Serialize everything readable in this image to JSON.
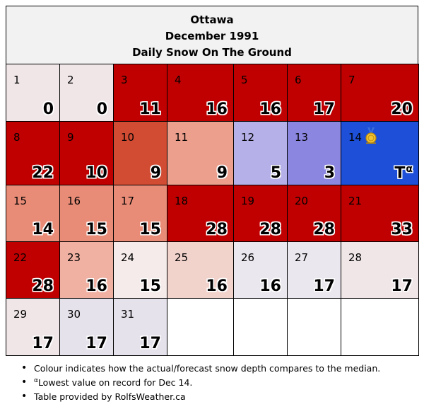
{
  "header": {
    "city": "Ottawa",
    "period": "December 1991",
    "subtitle": "Daily Snow On The Ground"
  },
  "colors": {
    "deep_red": "#c00000",
    "red_orange": "#d24b33",
    "salmon": "#ec9f8c",
    "salmon_mid": "#e98c77",
    "light_salmon": "#f2d3cc",
    "pale": "#f0e6e8",
    "pale_lavender": "#e6e2ec",
    "lavender": "#b5b0e8",
    "periwinkle": "#8b86e0",
    "record_blue": "#1d4fd8",
    "empty": "#ffffff"
  },
  "days": [
    {
      "day": "1",
      "value": "0",
      "color": "#f0e6e8"
    },
    {
      "day": "2",
      "value": "0",
      "color": "#f0e6e8"
    },
    {
      "day": "3",
      "value": "11",
      "color": "#c00000"
    },
    {
      "day": "4",
      "value": "16",
      "color": "#c00000"
    },
    {
      "day": "5",
      "value": "16",
      "color": "#c00000"
    },
    {
      "day": "6",
      "value": "17",
      "color": "#c00000"
    },
    {
      "day": "7",
      "value": "20",
      "color": "#c00000"
    },
    {
      "day": "8",
      "value": "22",
      "color": "#c00000"
    },
    {
      "day": "9",
      "value": "10",
      "color": "#c00000"
    },
    {
      "day": "10",
      "value": "9",
      "color": "#d24b33"
    },
    {
      "day": "11",
      "value": "9",
      "color": "#ec9f8c"
    },
    {
      "day": "12",
      "value": "5",
      "color": "#b5b0e8"
    },
    {
      "day": "13",
      "value": "3",
      "color": "#8b86e0"
    },
    {
      "day": "14",
      "value": "T",
      "note_marker": "α",
      "color": "#1d4fd8",
      "medal_icon": "medal-icon"
    },
    {
      "day": "15",
      "value": "14",
      "color": "#e98c77"
    },
    {
      "day": "16",
      "value": "15",
      "color": "#e98c77"
    },
    {
      "day": "17",
      "value": "15",
      "color": "#e98c77"
    },
    {
      "day": "18",
      "value": "28",
      "color": "#c00000"
    },
    {
      "day": "19",
      "value": "28",
      "color": "#c00000"
    },
    {
      "day": "20",
      "value": "28",
      "color": "#c00000"
    },
    {
      "day": "21",
      "value": "33",
      "color": "#c00000"
    },
    {
      "day": "22",
      "value": "28",
      "color": "#c00000"
    },
    {
      "day": "23",
      "value": "16",
      "color": "#f0b1a3"
    },
    {
      "day": "24",
      "value": "15",
      "color": "#f5ebea"
    },
    {
      "day": "25",
      "value": "16",
      "color": "#f2d3cc"
    },
    {
      "day": "26",
      "value": "16",
      "color": "#ebe7ee"
    },
    {
      "day": "27",
      "value": "17",
      "color": "#ebe7ee"
    },
    {
      "day": "28",
      "value": "17",
      "color": "#f0e6e8"
    },
    {
      "day": "29",
      "value": "17",
      "color": "#f0e6e8"
    },
    {
      "day": "30",
      "value": "17",
      "color": "#e6e2ec"
    },
    {
      "day": "31",
      "value": "17",
      "color": "#e6e2ec"
    }
  ],
  "notes": {
    "colour_note": "Colour indicates how the actual/forecast snow depth compares to the median.",
    "record_marker": "α",
    "record_note": "Lowest value on record for Dec 14.",
    "credit": "Table provided by RolfsWeather.ca"
  }
}
